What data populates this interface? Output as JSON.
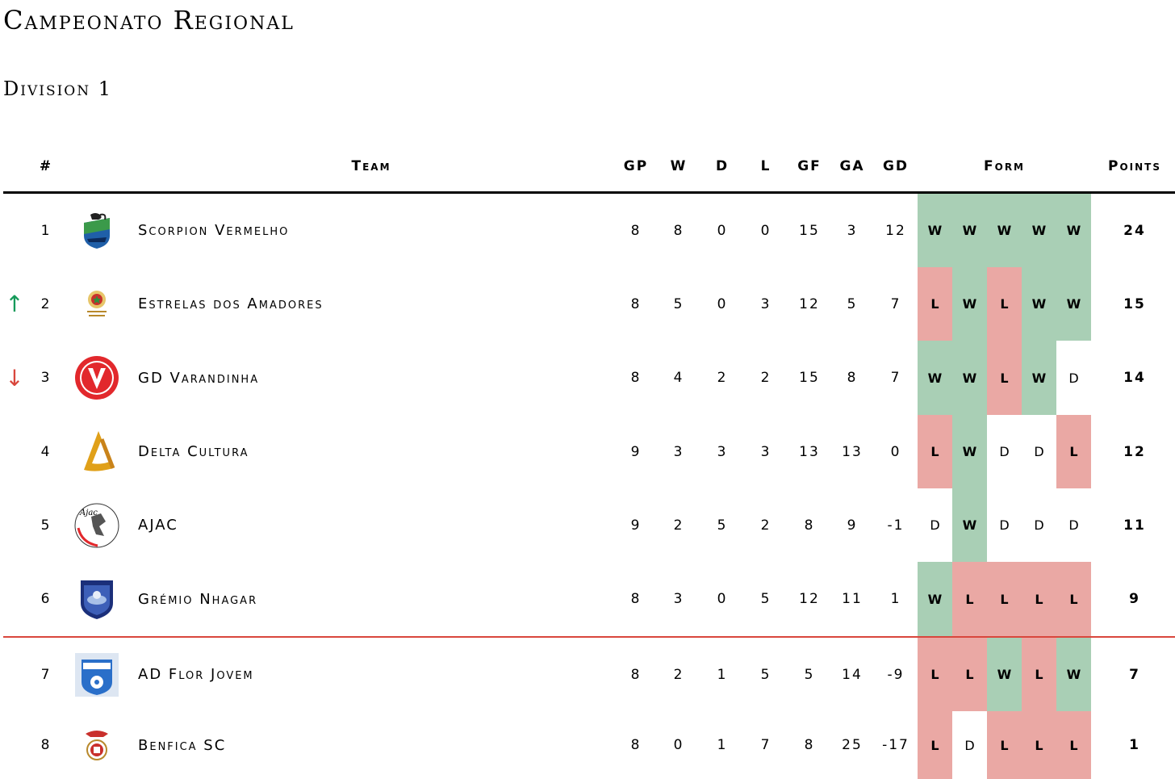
{
  "title": "Campeonato Regional",
  "subtitle": "Division 1",
  "columns": {
    "rank": "#",
    "team": "Team",
    "gp": "GP",
    "w": "W",
    "d": "D",
    "l": "L",
    "gf": "GF",
    "ga": "GA",
    "gd": "GD",
    "form": "Form",
    "points": "Points"
  },
  "colors": {
    "win": "#a9cfb5",
    "loss": "#eaa8a4",
    "up_arrow": "#159a5a",
    "down_arrow": "#d9473d",
    "cutoff_line": "#d9473d"
  },
  "rows": [
    {
      "rank": "1",
      "team": "Scorpion Vermelho",
      "movement": "",
      "gp": "8",
      "w": "8",
      "d": "0",
      "l": "0",
      "gf": "15",
      "ga": "3",
      "gd": "12",
      "form": [
        "W",
        "W",
        "W",
        "W",
        "W"
      ],
      "points": "24",
      "logo": "scorpion-vermelho-logo"
    },
    {
      "rank": "2",
      "team": "Estrelas dos Amadores",
      "movement": "↑",
      "gp": "8",
      "w": "5",
      "d": "0",
      "l": "3",
      "gf": "12",
      "ga": "5",
      "gd": "7",
      "form": [
        "L",
        "W",
        "L",
        "W",
        "W"
      ],
      "points": "15",
      "logo": "estrelas-dos-amadores-logo"
    },
    {
      "rank": "3",
      "team": "GD Varandinha",
      "movement": "↓",
      "gp": "8",
      "w": "4",
      "d": "2",
      "l": "2",
      "gf": "15",
      "ga": "8",
      "gd": "7",
      "form": [
        "W",
        "W",
        "L",
        "W",
        "D"
      ],
      "points": "14",
      "logo": "gd-varandinha-logo"
    },
    {
      "rank": "4",
      "team": "Delta Cultura",
      "movement": "",
      "gp": "9",
      "w": "3",
      "d": "3",
      "l": "3",
      "gf": "13",
      "ga": "13",
      "gd": "0",
      "form": [
        "L",
        "W",
        "D",
        "D",
        "L"
      ],
      "points": "12",
      "logo": "delta-cultura-logo"
    },
    {
      "rank": "5",
      "team": "AJAC",
      "movement": "",
      "gp": "9",
      "w": "2",
      "d": "5",
      "l": "2",
      "gf": "8",
      "ga": "9",
      "gd": "-1",
      "form": [
        "D",
        "W",
        "D",
        "D",
        "D"
      ],
      "points": "11",
      "logo": "ajac-logo"
    },
    {
      "rank": "6",
      "team": "Grémio Nhagar",
      "movement": "",
      "gp": "8",
      "w": "3",
      "d": "0",
      "l": "5",
      "gf": "12",
      "ga": "11",
      "gd": "1",
      "form": [
        "W",
        "L",
        "L",
        "L",
        "L"
      ],
      "points": "9",
      "logo": "gremio-nhagar-logo"
    },
    {
      "rank": "7",
      "team": "AD Flor Jovem",
      "movement": "",
      "gp": "8",
      "w": "2",
      "d": "1",
      "l": "5",
      "gf": "5",
      "ga": "14",
      "gd": "-9",
      "form": [
        "L",
        "L",
        "W",
        "L",
        "W"
      ],
      "points": "7",
      "logo": "ad-flor-jovem-logo"
    },
    {
      "rank": "8",
      "team": "Benfica SC",
      "movement": "",
      "gp": "8",
      "w": "0",
      "d": "1",
      "l": "7",
      "gf": "8",
      "ga": "25",
      "gd": "-17",
      "form": [
        "L",
        "D",
        "L",
        "L",
        "L"
      ],
      "points": "1",
      "logo": "benfica-sc-logo"
    }
  ]
}
